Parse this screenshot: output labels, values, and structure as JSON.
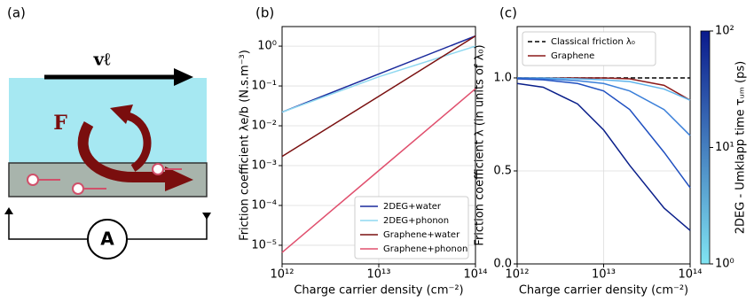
{
  "panel_labels": [
    "(a)",
    "(b)",
    "(c)"
  ],
  "schematic": {
    "velocity": "vℓ",
    "force": "F",
    "ammeter": "A"
  },
  "chart_data": [
    {
      "type": "line",
      "xlabel": "Charge carrier density (cm⁻²)",
      "ylabel": "Friction coefficient λe/b (N.s.m⁻³)",
      "x": [
        1000000000000.0,
        10000000000000.0,
        100000000000000.0
      ],
      "xlog": true,
      "ylog": true,
      "grid": true,
      "legend": "lower right",
      "xlim": [
        1000000000000.0,
        100000000000000.0
      ],
      "ylim": [
        3.4e-06,
        3.1
      ],
      "xticks": [
        {
          "value": 1000000000000.0,
          "label": "10¹²"
        },
        {
          "value": 10000000000000.0,
          "label": "10¹³"
        },
        {
          "value": 100000000000000.0,
          "label": "10¹⁴"
        }
      ],
      "yticks": [
        {
          "value": 1e-05,
          "label": "10⁻⁵"
        },
        {
          "value": 0.0001,
          "label": "10⁻⁴"
        },
        {
          "value": 0.001,
          "label": "10⁻³"
        },
        {
          "value": 0.01,
          "label": "10⁻²"
        },
        {
          "value": 0.1,
          "label": "10⁻¹"
        },
        {
          "value": 1,
          "label": "10⁰"
        }
      ],
      "series": [
        {
          "name": "2DEG+water",
          "color": "#1a2a9c",
          "values": [
            0.022,
            0.2,
            1.8
          ]
        },
        {
          "name": "2DEG+phonon",
          "color": "#8fd8f0",
          "values": [
            0.022,
            0.17,
            1.0
          ]
        },
        {
          "name": "Graphene+water",
          "color": "#7a1010",
          "values": [
            0.0017,
            0.055,
            1.8
          ]
        },
        {
          "name": "Graphene+phonon",
          "color": "#e0506e",
          "values": [
            6.6e-06,
            0.00075,
            0.085
          ]
        }
      ]
    },
    {
      "type": "line",
      "xlabel": "Charge carrier density (cm⁻²)",
      "ylabel": "Friction coefficient λ (in units of λ₀)",
      "x": [
        1000000000000.0,
        2000000000000.0,
        5000000000000.0,
        10000000000000.0,
        20000000000000.0,
        50000000000000.0,
        100000000000000.0
      ],
      "xlog": true,
      "ylog": false,
      "grid": true,
      "legend": "upper left",
      "xlim": [
        1000000000000.0,
        100000000000000.0
      ],
      "ylim": [
        0,
        1.276
      ],
      "xticks": [
        {
          "value": 1000000000000.0,
          "label": "10¹²"
        },
        {
          "value": 10000000000000.0,
          "label": "10¹³"
        },
        {
          "value": 100000000000000.0,
          "label": "10¹⁴"
        }
      ],
      "yticks": [
        {
          "value": 0,
          "label": "0.0"
        },
        {
          "value": 0.5,
          "label": "0.5"
        },
        {
          "value": 1,
          "label": "1.0"
        }
      ],
      "series": [
        {
          "name": "Classical friction λ₀",
          "color": "#000000",
          "dashed": true,
          "values": [
            1,
            1,
            1,
            1,
            1,
            1,
            1
          ]
        },
        {
          "name": "Graphene",
          "color": "#8b1a1a",
          "values": [
            1,
            1,
            1,
            1,
            0.995,
            0.96,
            0.88
          ]
        },
        {
          "color": "#5fb4ec",
          "values": [
            1,
            1,
            0.995,
            0.99,
            0.98,
            0.94,
            0.88
          ]
        },
        {
          "color": "#3a7fd9",
          "values": [
            1,
            0.995,
            0.985,
            0.97,
            0.93,
            0.83,
            0.69
          ]
        },
        {
          "color": "#1f4fc0",
          "values": [
            0.995,
            0.99,
            0.97,
            0.93,
            0.83,
            0.6,
            0.41
          ]
        },
        {
          "color": "#0a1f8a",
          "values": [
            0.97,
            0.95,
            0.86,
            0.72,
            0.53,
            0.3,
            0.18
          ]
        }
      ],
      "colorbar": {
        "label": "2DEG - Umklapp time τᵤₘ (ps)",
        "lim": [
          1,
          100
        ],
        "log": true,
        "colors": [
          "#80e4f2",
          "#0a1a8c"
        ],
        "ticks": [
          {
            "value": 1,
            "label": "10⁰"
          },
          {
            "value": 10,
            "label": "10¹"
          },
          {
            "value": 100,
            "label": "10²"
          }
        ]
      }
    }
  ]
}
